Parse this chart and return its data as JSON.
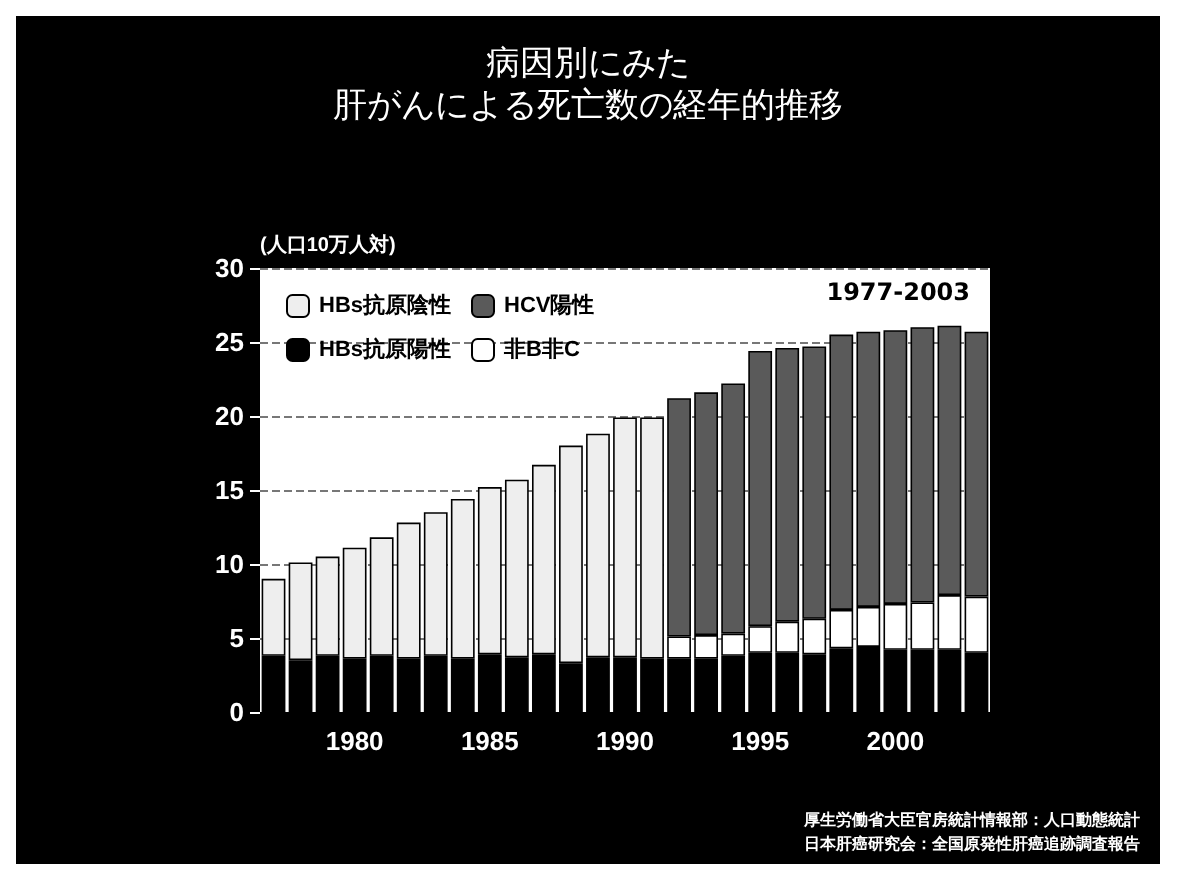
{
  "chart_data": {
    "type": "bar",
    "title": "病因別にみた",
    "subtitle": "肝がんによる死亡数の経年的推移",
    "ylabel": "(人口10万人対)",
    "stacked": true,
    "categories": [
      null,
      null,
      null,
      "1980",
      null,
      null,
      null,
      null,
      "1985",
      null,
      null,
      null,
      null,
      "1990",
      null,
      null,
      null,
      null,
      "1995",
      null,
      null,
      null,
      null,
      "2000",
      null,
      null,
      null
    ],
    "series": [
      {
        "name": "HBs抗原陽性",
        "color": "#000000",
        "values": [
          3.8,
          3.5,
          3.8,
          3.6,
          3.8,
          3.6,
          3.8,
          3.6,
          3.9,
          3.7,
          3.9,
          3.3,
          3.7,
          3.7,
          3.6,
          3.6,
          3.6,
          3.8,
          4.0,
          4.0,
          3.9,
          4.3,
          4.4,
          4.2,
          4.2,
          4.2,
          4.0
        ]
      },
      {
        "name": "HBs抗原陰性",
        "color": "#eeeeee",
        "values": [
          5.2,
          6.6,
          6.7,
          7.5,
          8.0,
          9.2,
          9.7,
          10.8,
          11.3,
          12.0,
          12.8,
          14.7,
          15.1,
          16.2,
          16.3,
          null,
          null,
          null,
          null,
          null,
          null,
          null,
          null,
          null,
          null,
          null,
          null
        ]
      },
      {
        "name": "非B非C",
        "color": "#ffffff",
        "values": [
          null,
          null,
          null,
          null,
          null,
          null,
          null,
          null,
          null,
          null,
          null,
          null,
          null,
          null,
          null,
          1.5,
          1.6,
          1.5,
          1.8,
          2.1,
          2.4,
          2.6,
          2.7,
          3.1,
          3.2,
          3.7,
          3.8
        ]
      },
      {
        "name": "HCV陽性",
        "color": "#5a5a5a",
        "values": [
          null,
          null,
          null,
          null,
          null,
          null,
          null,
          null,
          null,
          null,
          null,
          null,
          null,
          null,
          null,
          16.1,
          16.4,
          16.9,
          18.6,
          18.5,
          18.4,
          18.6,
          18.6,
          18.5,
          18.6,
          18.2,
          17.9
        ]
      }
    ],
    "ylim": [
      0,
      30
    ],
    "yticks": [
      0,
      5,
      10,
      15,
      20,
      25,
      30
    ],
    "grid": "y",
    "legend": "top left",
    "annotations": [
      {
        "text": "1977-2003"
      },
      "厚生労働省大臣官房統計情報部：人口動態統計",
      "日本肝癌研究会：全国原発性肝癌追跡調査報告"
    ]
  }
}
